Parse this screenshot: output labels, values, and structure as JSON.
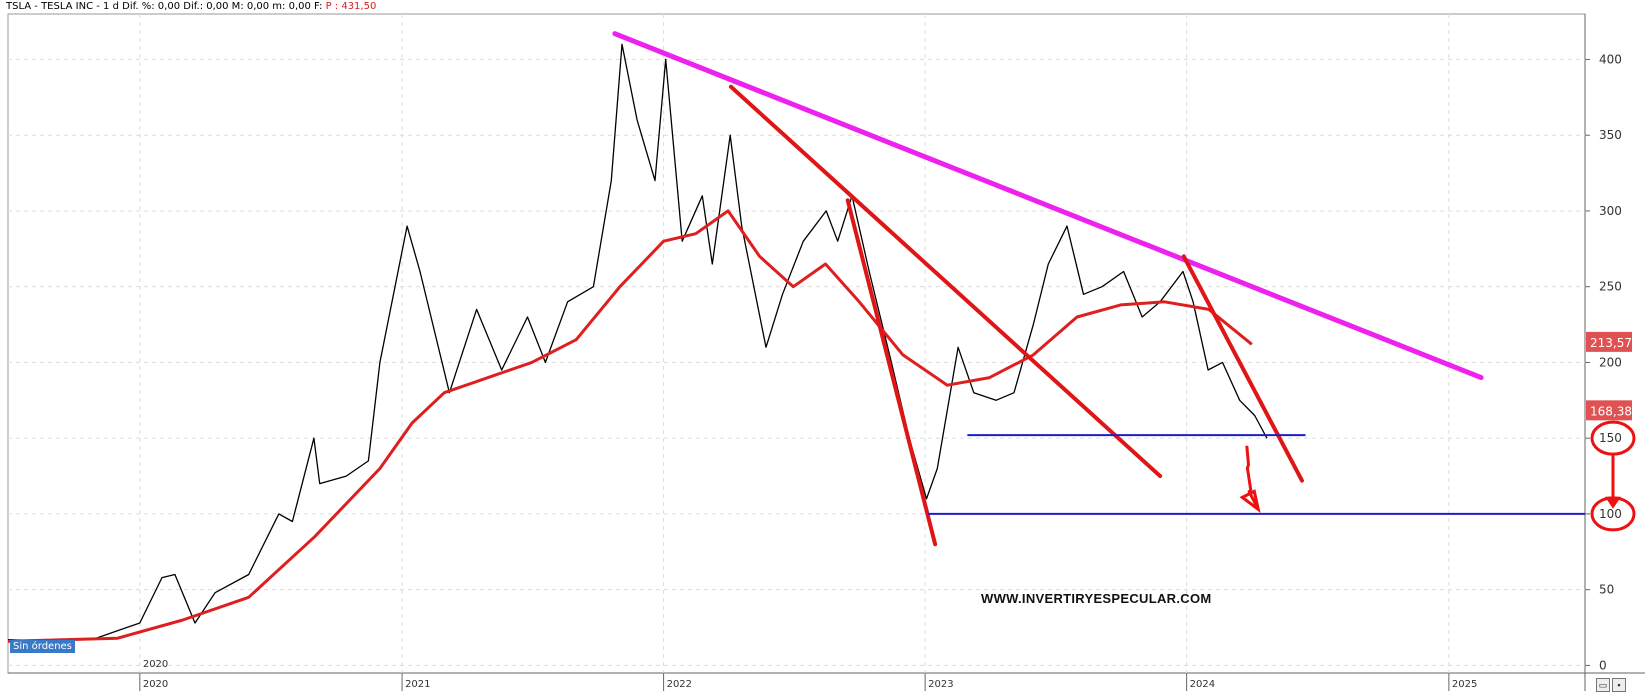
{
  "header": {
    "symbol": "TSLA - TESLA INC",
    "info": "- 1 d  Dif. %: 0,00  Dif.: 0,00  M: 0,00  m: 0,00  F:",
    "price": "P : 431,50"
  },
  "status_badge": "Sin órdenes",
  "watermark": "WWW.INVERTIRYESPECULAR.COM",
  "colors": {
    "price": "#000000",
    "ma": "#dd1f1f",
    "downtrend": "#e01616",
    "resistance": "#ee22ee",
    "support": "#1e1ec8",
    "label_bg": "#e05252",
    "annotation": "#ee1111"
  },
  "chart_data": {
    "type": "line",
    "xlabel": "",
    "ylabel": "",
    "ylim": [
      -5,
      430
    ],
    "xlim": [
      "2019-07-01",
      "2025-07-10"
    ],
    "yticks": [
      0,
      50,
      100,
      150,
      200,
      250,
      300,
      350,
      400
    ],
    "x_ticks": [
      {
        "date": "2020-01-01",
        "label": "2020"
      },
      {
        "date": "2021-01-01",
        "label": "2021"
      },
      {
        "date": "2022-01-01",
        "label": "2022"
      },
      {
        "date": "2023-01-01",
        "label": "2023"
      },
      {
        "date": "2024-01-01",
        "label": "2024"
      },
      {
        "date": "2025-01-01",
        "label": "2025"
      }
    ],
    "grid": true,
    "series": [
      {
        "role": "price",
        "x": [
          "2019-07-01",
          "2019-09-01",
          "2019-11-01",
          "2020-01-01",
          "2020-02-01",
          "2020-02-19",
          "2020-03-18",
          "2020-04-15",
          "2020-06-01",
          "2020-07-13",
          "2020-08-01",
          "2020-08-31",
          "2020-09-08",
          "2020-10-15",
          "2020-11-15",
          "2020-12-01",
          "2021-01-08",
          "2021-01-26",
          "2021-03-08",
          "2021-04-15",
          "2021-05-20",
          "2021-06-25",
          "2021-07-20",
          "2021-08-20",
          "2021-09-25",
          "2021-10-20",
          "2021-11-04",
          "2021-11-25",
          "2021-12-20",
          "2022-01-04",
          "2022-01-27",
          "2022-02-24",
          "2022-03-10",
          "2022-04-04",
          "2022-04-20",
          "2022-05-24",
          "2022-06-16",
          "2022-07-15",
          "2022-08-16",
          "2022-09-01",
          "2022-09-21",
          "2022-10-15",
          "2022-11-15",
          "2022-12-10",
          "2023-01-03",
          "2023-01-18",
          "2023-02-16",
          "2023-03-10",
          "2023-04-10",
          "2023-05-05",
          "2023-06-01",
          "2023-06-22",
          "2023-07-18",
          "2023-08-10",
          "2023-09-05",
          "2023-10-05",
          "2023-10-31",
          "2023-11-25",
          "2023-12-27",
          "2024-01-10",
          "2024-01-31",
          "2024-02-20",
          "2024-03-15",
          "2024-04-05",
          "2024-04-22"
        ],
        "y": [
          17,
          16,
          18,
          28,
          58,
          60,
          28,
          48,
          60,
          100,
          95,
          150,
          120,
          125,
          135,
          200,
          290,
          260,
          180,
          235,
          195,
          230,
          200,
          240,
          250,
          320,
          410,
          360,
          320,
          400,
          280,
          310,
          265,
          350,
          290,
          210,
          245,
          280,
          300,
          280,
          310,
          260,
          200,
          150,
          110,
          130,
          210,
          180,
          175,
          180,
          225,
          265,
          290,
          245,
          250,
          260,
          230,
          240,
          260,
          240,
          195,
          200,
          175,
          165,
          150
        ]
      },
      {
        "role": "moving_average",
        "x": [
          "2019-07-01",
          "2019-12-01",
          "2020-03-01",
          "2020-06-01",
          "2020-09-01",
          "2020-12-01",
          "2021-01-15",
          "2021-03-01",
          "2021-05-01",
          "2021-07-01",
          "2021-09-01",
          "2021-11-01",
          "2022-01-01",
          "2022-02-15",
          "2022-04-01",
          "2022-05-15",
          "2022-07-01",
          "2022-08-15",
          "2022-10-01",
          "2022-12-01",
          "2023-02-01",
          "2023-04-01",
          "2023-06-01",
          "2023-08-01",
          "2023-10-01",
          "2023-12-01",
          "2024-02-01",
          "2024-04-01"
        ],
        "y": [
          16,
          18,
          30,
          45,
          85,
          130,
          160,
          180,
          190,
          200,
          215,
          250,
          280,
          285,
          300,
          270,
          250,
          265,
          240,
          205,
          185,
          190,
          205,
          230,
          238,
          240,
          235,
          212
        ]
      }
    ],
    "trendlines": [
      {
        "role": "resistance",
        "from": [
          "2021-10-25",
          417
        ],
        "to": [
          "2025-02-15",
          190
        ]
      },
      {
        "role": "downtrend",
        "from": [
          "2022-04-05",
          382
        ],
        "to": [
          "2023-11-25",
          125
        ]
      },
      {
        "role": "downtrend",
        "from": [
          "2022-09-15",
          307
        ],
        "to": [
          "2023-01-15",
          80
        ]
      },
      {
        "role": "downtrend",
        "from": [
          "2023-12-28",
          270
        ],
        "to": [
          "2024-06-10",
          122
        ]
      }
    ],
    "levels": [
      {
        "role": "support",
        "value": 152,
        "from": "2023-03-01",
        "to": "2024-06-15"
      },
      {
        "role": "support",
        "value": 100,
        "from": "2023-01-05",
        "to": "2025-07-10"
      }
    ],
    "price_labels": [
      {
        "value": 213.57,
        "text": "213,57"
      },
      {
        "value": 168.38,
        "text": "168,38"
      }
    ],
    "annotations": [
      {
        "type": "zigzag-arrow",
        "from": [
          "2024-03-25",
          145
        ],
        "to": [
          "2024-04-10",
          103
        ]
      },
      {
        "type": "circle",
        "axis_value": 150
      },
      {
        "type": "circle",
        "axis_value": 100
      },
      {
        "type": "arrow",
        "axis_from": 150,
        "axis_to": 110
      }
    ]
  }
}
